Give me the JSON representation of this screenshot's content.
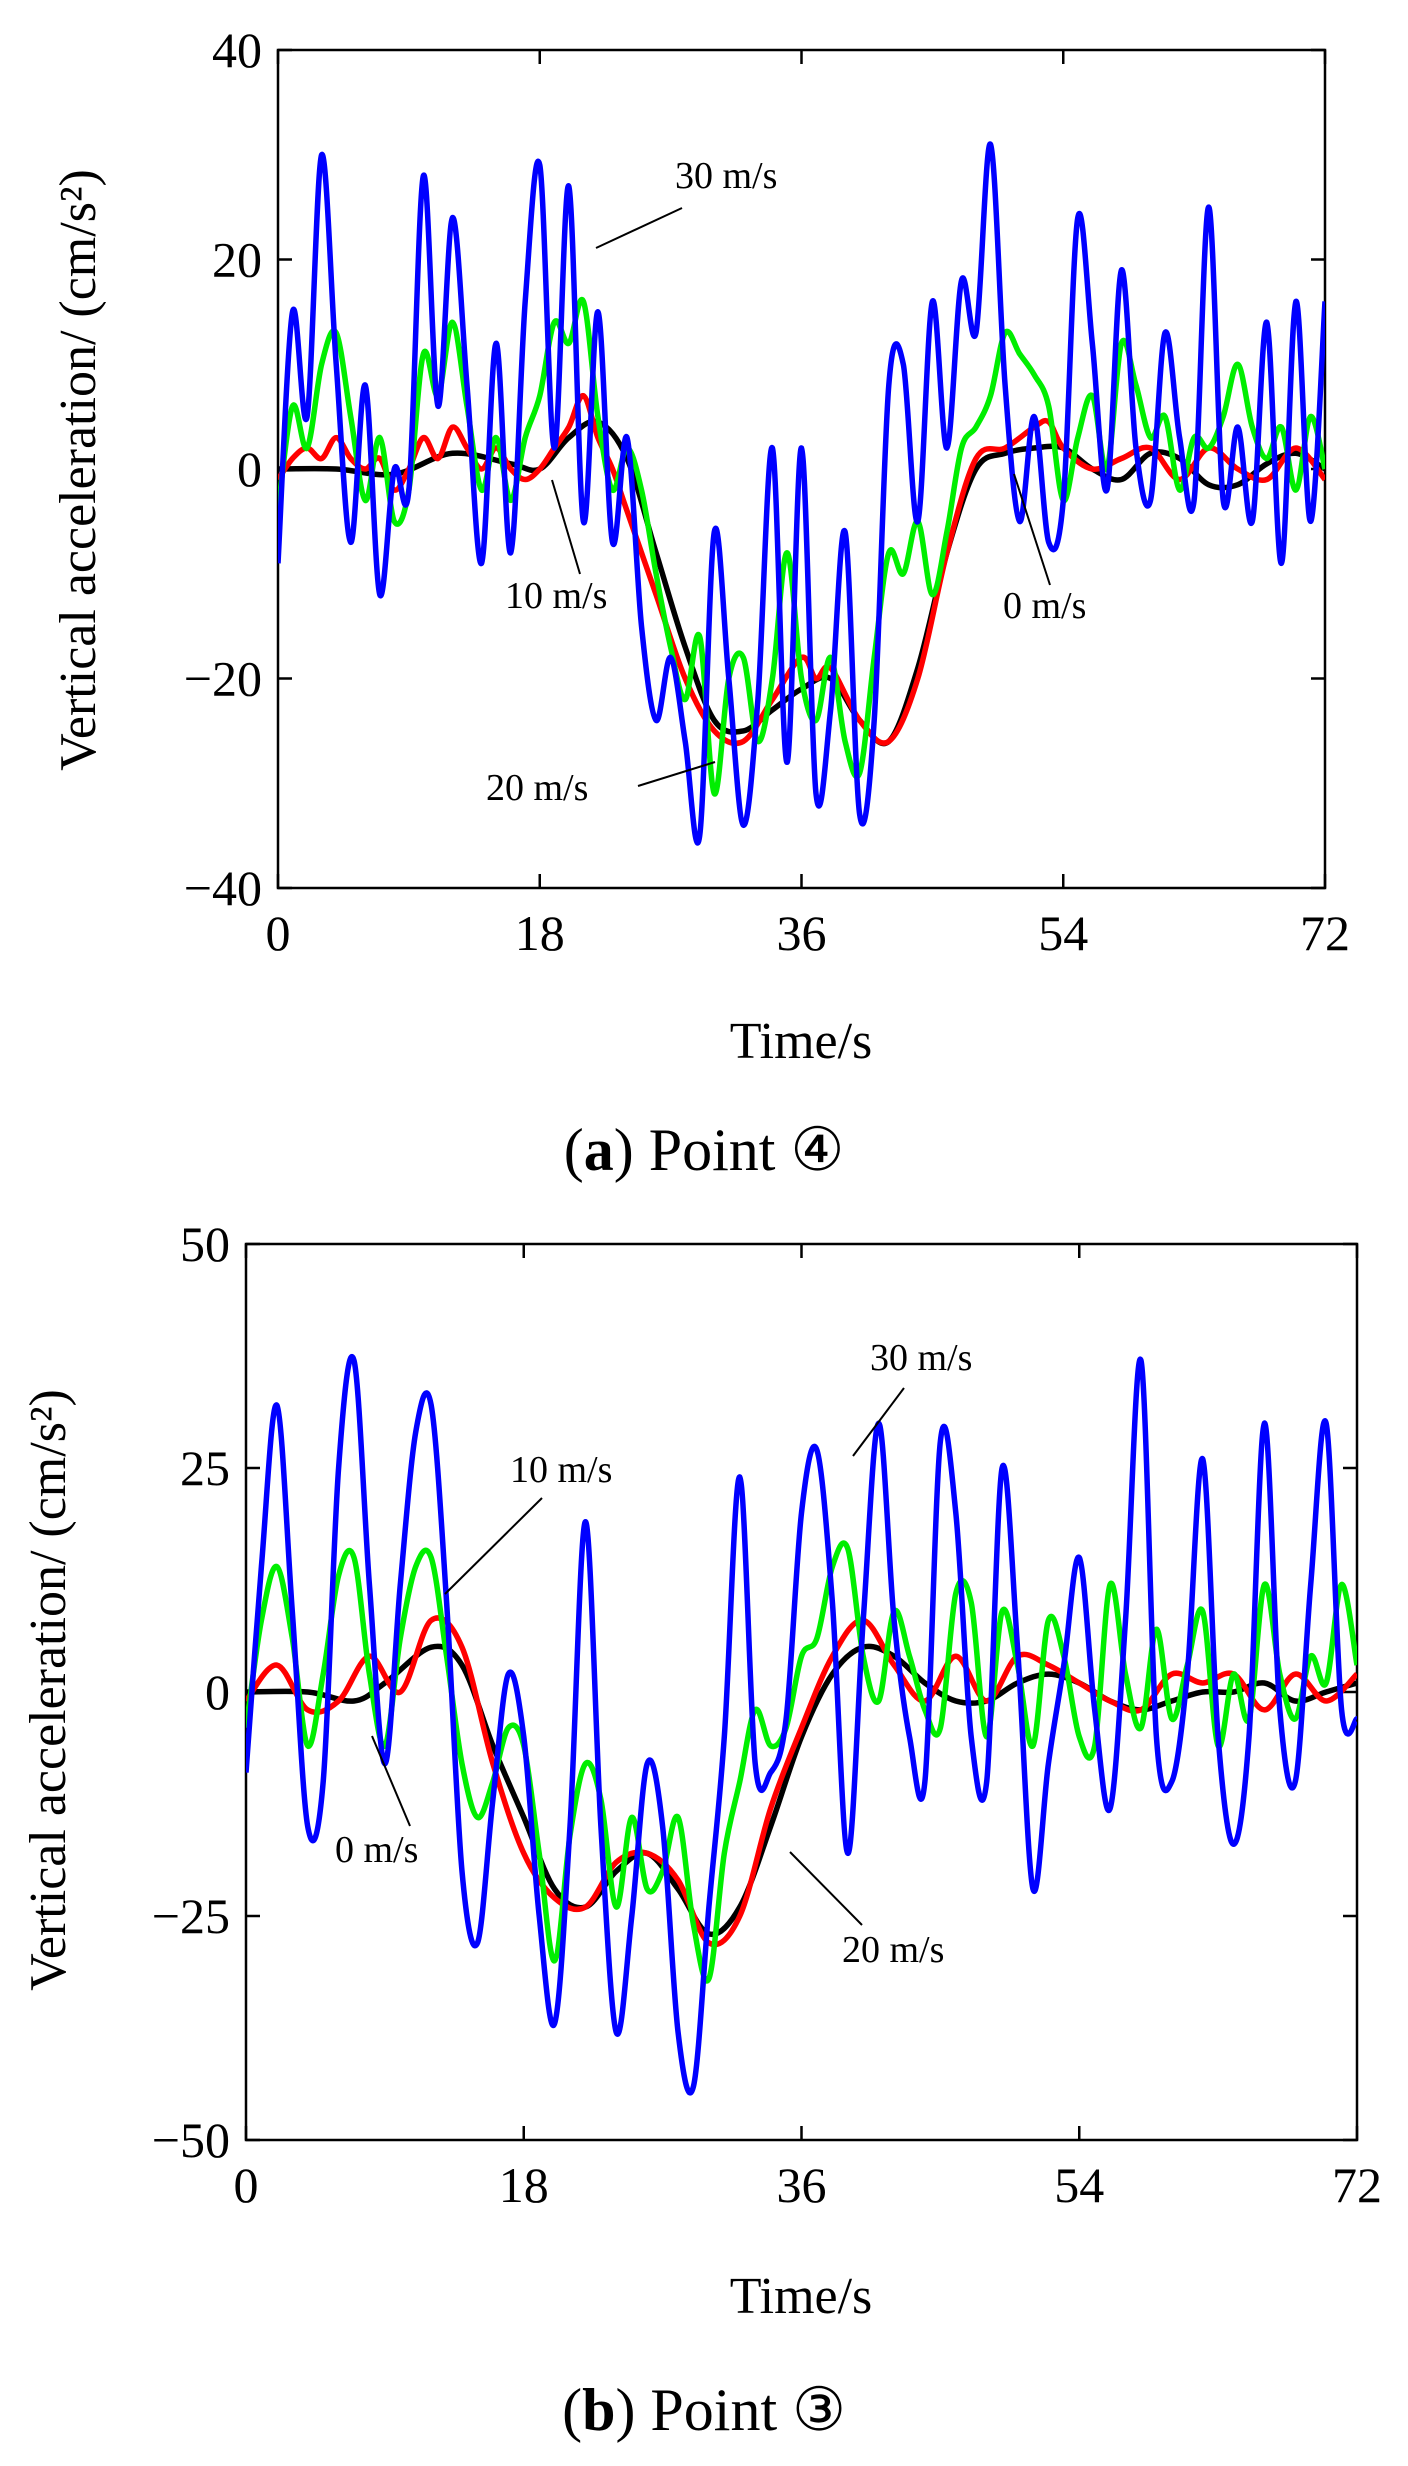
{
  "chart_data": [
    {
      "type": "line",
      "caption": {
        "open": "(",
        "letter": "a",
        "close": ")",
        "text": " Point ④"
      },
      "xlabel": "Time/s",
      "ylabel": "Vertical acceleration/ (cm/s²)",
      "xlim": [
        0,
        72
      ],
      "ylim": [
        -40,
        40
      ],
      "xticks": [
        0,
        18,
        36,
        54,
        72
      ],
      "yticks": [
        -40,
        -20,
        0,
        20,
        40
      ],
      "ytick_labels": [
        "−40",
        "−20",
        "0",
        "20",
        "40"
      ],
      "xtick_labels": [
        "0",
        "18",
        "36",
        "54",
        "72"
      ],
      "series": [
        {
          "name": "0 m/s",
          "color": "#000000",
          "x": [
            0,
            4,
            8,
            12,
            16,
            18,
            20,
            22,
            24,
            26,
            28,
            30,
            32,
            34,
            36,
            38,
            40,
            42,
            44,
            46,
            48,
            50,
            52,
            54,
            56,
            58,
            60,
            62,
            64,
            66,
            68,
            70,
            72
          ],
          "y": [
            0,
            0,
            -0.5,
            1.5,
            0.5,
            0,
            3,
            4.5,
            1,
            -8,
            -17,
            -24,
            -25,
            -23,
            -21,
            -20,
            -24,
            -26,
            -19,
            -8,
            0,
            1.5,
            2,
            2,
            0,
            -1,
            1.5,
            1,
            -1.5,
            -1.5,
            0.5,
            1.5,
            0
          ]
        },
        {
          "name": "10 m/s",
          "color": "#ff0000",
          "x": [
            0,
            1,
            2,
            3,
            4,
            5,
            6,
            7,
            8,
            9,
            10,
            11,
            12,
            13,
            14,
            15,
            16,
            17,
            18,
            19,
            20,
            21,
            22,
            23,
            24,
            26,
            28,
            30,
            32,
            34,
            36,
            37,
            38,
            40,
            42,
            44,
            46,
            48,
            50,
            52,
            53,
            54,
            56,
            58,
            60,
            62,
            64,
            66,
            68,
            70,
            72
          ],
          "y": [
            -1,
            1,
            2,
            1,
            3,
            1,
            0,
            1,
            -2,
            0,
            3,
            1,
            4,
            2,
            0,
            2,
            0,
            -1,
            0,
            2,
            4,
            7,
            3,
            0,
            -4,
            -12,
            -20,
            -25,
            -26,
            -22,
            -18,
            -20,
            -19,
            -24,
            -26,
            -20,
            -8,
            1,
            2,
            4,
            4.5,
            2,
            0,
            1,
            2,
            -1,
            2,
            0,
            -1,
            2,
            -1
          ]
        },
        {
          "name": "20 m/s",
          "color": "#00ee00",
          "x": [
            0,
            1,
            2,
            3,
            4,
            5,
            6,
            7,
            8,
            9,
            10,
            11,
            12,
            13,
            14,
            15,
            16,
            17,
            18,
            19,
            20,
            21,
            22,
            23,
            24,
            25,
            26,
            27,
            28,
            29,
            30,
            31,
            32,
            33,
            34,
            35,
            36,
            37,
            38,
            39,
            40,
            41,
            42,
            43,
            44,
            45,
            46,
            47,
            48,
            49,
            50,
            51,
            52,
            53,
            54,
            55,
            56,
            57,
            58,
            59,
            60,
            61,
            62,
            63,
            64,
            65,
            66,
            67,
            68,
            69,
            70,
            71,
            72
          ],
          "y": [
            -4,
            6,
            2,
            10,
            13,
            5,
            -3,
            3,
            -5,
            -2,
            11,
            7,
            14,
            6,
            -2,
            3,
            -3,
            3,
            7,
            14,
            12,
            16,
            5,
            -2,
            2,
            -2,
            -10,
            -17,
            -22,
            -16,
            -31,
            -20,
            -18,
            -26,
            -20,
            -8,
            -20,
            -24,
            -18,
            -26,
            -29,
            -18,
            -8,
            -10,
            -5,
            -12,
            -6,
            2,
            4,
            7,
            13,
            11,
            9,
            6,
            -3,
            3,
            7,
            0,
            12,
            8,
            3,
            5,
            -2,
            3,
            2,
            5,
            10,
            4,
            1,
            4,
            -2,
            5,
            0
          ]
        },
        {
          "name": "30 m/s",
          "color": "#0000ff",
          "x": [
            0,
            1,
            2,
            3,
            4,
            5,
            6,
            7,
            8,
            9,
            10,
            11,
            12,
            13,
            14,
            15,
            16,
            17,
            18,
            19,
            20,
            21,
            22,
            23,
            24,
            25,
            26,
            27,
            28,
            29,
            30,
            31,
            32,
            33,
            34,
            35,
            36,
            37,
            38,
            39,
            40,
            41,
            42,
            43,
            44,
            45,
            46,
            47,
            48,
            49,
            50,
            51,
            52,
            53,
            54,
            55,
            56,
            57,
            58,
            59,
            60,
            61,
            62,
            63,
            64,
            65,
            66,
            67,
            68,
            69,
            70,
            71,
            72
          ],
          "y": [
            -9,
            15,
            5,
            30,
            10,
            -7,
            8,
            -12,
            0,
            -2,
            28,
            6,
            24,
            8,
            -9,
            12,
            -8,
            16,
            29,
            2,
            27,
            -5,
            15,
            -7,
            3,
            -15,
            -24,
            -18,
            -26,
            -35,
            -6,
            -20,
            -34,
            -22,
            2,
            -28,
            2,
            -31,
            -23,
            -6,
            -33,
            -24,
            8,
            10,
            -5,
            16,
            2,
            18,
            13,
            31,
            8,
            -5,
            5,
            -7,
            -3,
            24,
            12,
            -2,
            19,
            2,
            -3,
            13,
            3,
            -3,
            25,
            -3,
            4,
            -5,
            14,
            -9,
            16,
            -5,
            16
          ]
        }
      ],
      "annotations": [
        {
          "text": "30 m/s"
        },
        {
          "text": "10 m/s"
        },
        {
          "text": "0 m/s"
        },
        {
          "text": "20 m/s"
        }
      ]
    },
    {
      "type": "line",
      "caption": {
        "open": "(",
        "letter": "b",
        "close": ")",
        "text": " Point ③"
      },
      "xlabel": "Time/s",
      "ylabel": "Vertical acceleration/ (cm/s²)",
      "xlim": [
        0,
        72
      ],
      "ylim": [
        -50,
        50
      ],
      "xticks": [
        0,
        18,
        36,
        54,
        72
      ],
      "yticks": [
        -50,
        -25,
        0,
        25,
        50
      ],
      "ytick_labels": [
        "−50",
        "−25",
        "0",
        "25",
        "50"
      ],
      "xtick_labels": [
        "0",
        "18",
        "36",
        "54",
        "72"
      ],
      "series": [
        {
          "name": "0 m/s",
          "color": "#000000",
          "x": [
            0,
            4,
            7,
            9,
            12,
            14,
            16,
            18,
            20,
            22,
            24,
            26,
            28,
            30,
            32,
            34,
            36,
            38,
            40,
            42,
            44,
            46,
            48,
            50,
            52,
            54,
            56,
            58,
            60,
            62,
            64,
            66,
            68,
            70,
            72
          ],
          "y": [
            0,
            0,
            -1,
            1,
            5,
            3,
            -6,
            -14,
            -22,
            -24,
            -20,
            -18,
            -22,
            -27,
            -24,
            -15,
            -5,
            2,
            5,
            4,
            1,
            -1,
            -1,
            1,
            2,
            1,
            -1,
            -2,
            -1,
            0,
            0,
            1,
            -1,
            0,
            1
          ]
        },
        {
          "name": "10 m/s",
          "color": "#ff0000",
          "x": [
            0,
            2,
            4,
            6,
            8,
            10,
            12,
            14,
            16,
            18,
            20,
            22,
            24,
            26,
            28,
            30,
            32,
            34,
            36,
            38,
            40,
            42,
            44,
            46,
            48,
            50,
            52,
            54,
            56,
            58,
            60,
            62,
            64,
            66,
            68,
            70,
            72
          ],
          "y": [
            -1,
            3,
            -2,
            -1,
            4,
            0,
            8,
            5,
            -8,
            -18,
            -23,
            -24,
            -19,
            -18,
            -21,
            -28,
            -25,
            -13,
            -4,
            4,
            8,
            3,
            -1,
            4,
            -1,
            4,
            3,
            1,
            -1,
            -2,
            2,
            1,
            2,
            -2,
            2,
            -1,
            2
          ]
        },
        {
          "name": "20 m/s",
          "color": "#00ee00",
          "x": [
            0,
            1,
            2,
            3,
            4,
            5,
            6,
            7,
            8,
            9,
            10,
            11,
            12,
            13,
            14,
            15,
            16,
            17,
            18,
            19,
            20,
            21,
            22,
            23,
            24,
            25,
            26,
            27,
            28,
            29,
            30,
            31,
            32,
            33,
            34,
            35,
            36,
            37,
            38,
            39,
            40,
            41,
            42,
            43,
            44,
            45,
            46,
            47,
            48,
            49,
            50,
            51,
            52,
            53,
            54,
            55,
            56,
            57,
            58,
            59,
            60,
            61,
            62,
            63,
            64,
            65,
            66,
            67,
            68,
            69,
            70,
            71,
            72
          ],
          "y": [
            -4,
            8,
            14,
            6,
            -6,
            2,
            13,
            15,
            2,
            -6,
            6,
            14,
            15,
            4,
            -8,
            -14,
            -10,
            -4,
            -6,
            -18,
            -30,
            -16,
            -8,
            -12,
            -24,
            -14,
            -22,
            -20,
            -14,
            -26,
            -32,
            -18,
            -10,
            -2,
            -6,
            -4,
            4,
            6,
            14,
            16,
            4,
            -1,
            9,
            4,
            -2,
            -4,
            11,
            10,
            -5,
            9,
            3,
            -6,
            8,
            4,
            -5,
            -6,
            12,
            2,
            -4,
            7,
            -3,
            3,
            9,
            -6,
            2,
            -3,
            12,
            2,
            -3,
            4,
            1,
            12,
            3
          ]
        },
        {
          "name": "30 m/s",
          "color": "#0000ff",
          "x": [
            0,
            1,
            2,
            3,
            4,
            5,
            6,
            7,
            8,
            9,
            10,
            11,
            12,
            13,
            14,
            15,
            16,
            17,
            18,
            19,
            20,
            21,
            22,
            23,
            24,
            25,
            26,
            27,
            28,
            29,
            30,
            31,
            32,
            33,
            34,
            35,
            36,
            37,
            38,
            39,
            40,
            41,
            42,
            43,
            44,
            45,
            46,
            47,
            48,
            49,
            50,
            51,
            52,
            53,
            54,
            55,
            56,
            57,
            58,
            59,
            60,
            61,
            62,
            63,
            64,
            65,
            66,
            67,
            68,
            69,
            70,
            71,
            72
          ],
          "y": [
            -9,
            14,
            32,
            9,
            -15,
            -10,
            25,
            37,
            12,
            -8,
            12,
            29,
            32,
            10,
            -20,
            -28,
            -12,
            2,
            -5,
            -25,
            -37,
            -15,
            19,
            -15,
            -38,
            -25,
            -8,
            -15,
            -38,
            -44,
            -24,
            -5,
            24,
            -8,
            -9,
            -3,
            20,
            27,
            10,
            -18,
            8,
            30,
            8,
            -5,
            -10,
            28,
            20,
            -5,
            -10,
            25,
            5,
            -22,
            -8,
            3,
            15,
            -2,
            -13,
            8,
            37,
            -5,
            -10,
            2,
            26,
            -5,
            -17,
            -5,
            30,
            -2,
            -10,
            12,
            30,
            -2,
            -3
          ]
        }
      ],
      "annotations": [
        {
          "text": "30 m/s"
        },
        {
          "text": "10 m/s"
        },
        {
          "text": "0 m/s"
        },
        {
          "text": "20 m/s"
        }
      ]
    }
  ]
}
